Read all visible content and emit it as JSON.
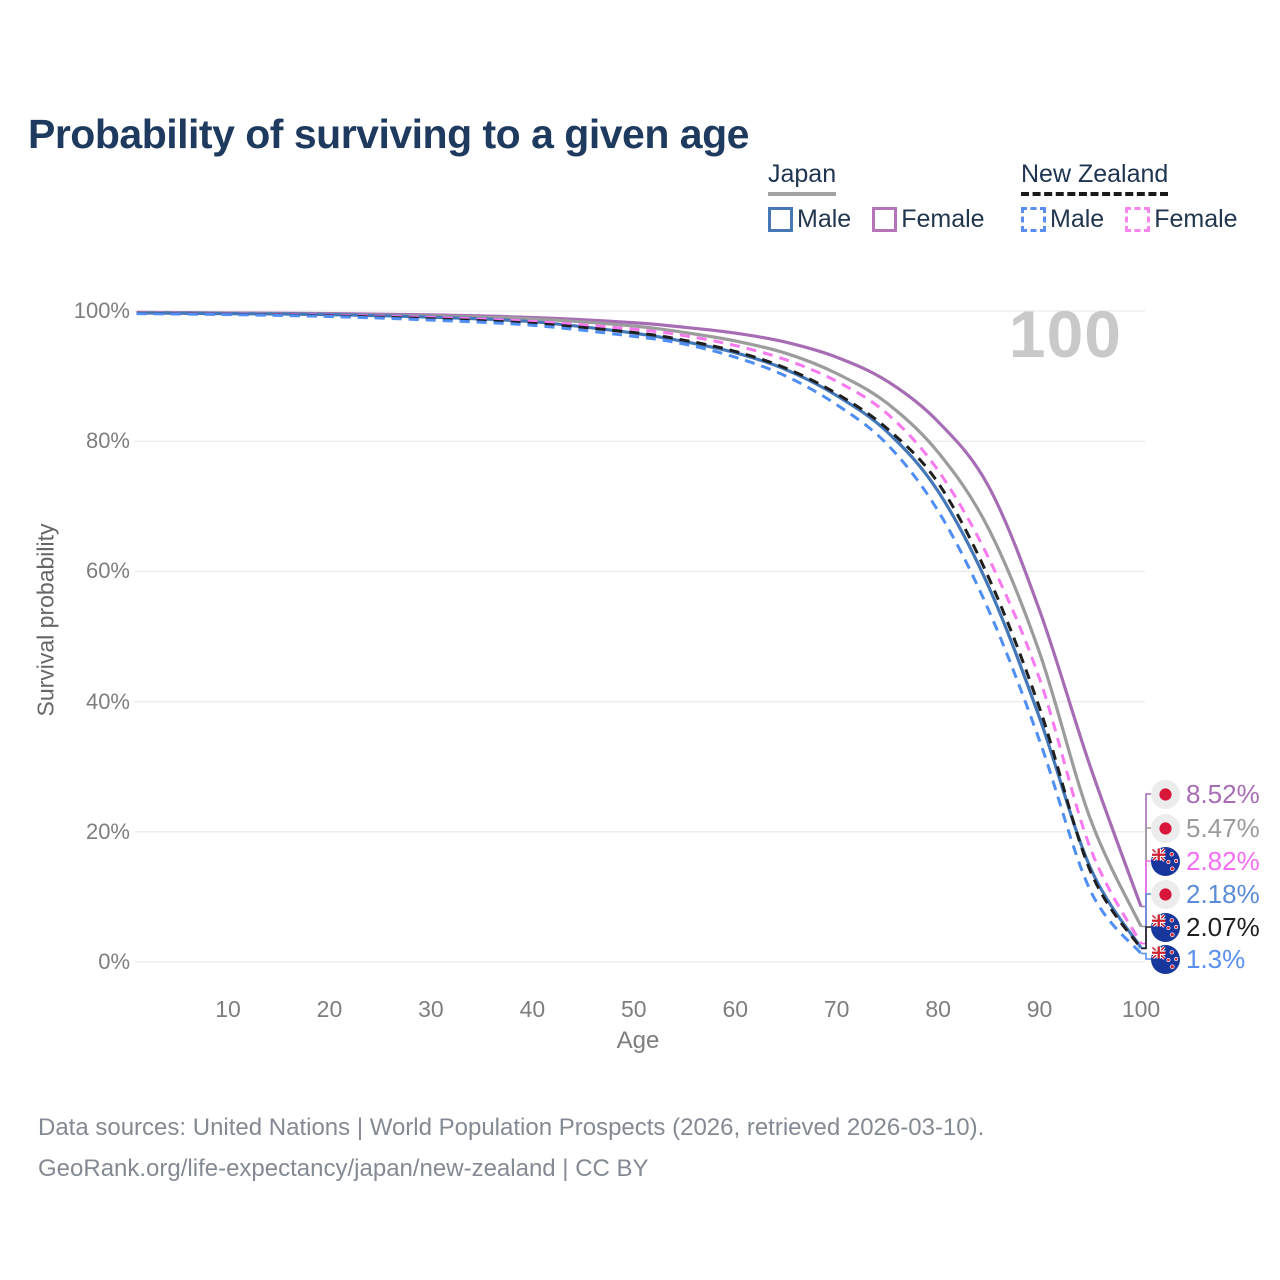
{
  "header": {
    "title": "Probability of surviving to a given age"
  },
  "legend": {
    "groups": [
      {
        "name": "Japan",
        "underline": "solid",
        "underline_color": "#a3a3a3",
        "items": [
          {
            "label": "Male",
            "color": "#4779b8",
            "dash": false
          },
          {
            "label": "Female",
            "color": "#b573b8",
            "dash": false
          }
        ]
      },
      {
        "name": "New Zealand",
        "underline": "dashed",
        "underline_color": "#1a1a1a",
        "items": [
          {
            "label": "Male",
            "color": "#5a8ff2",
            "dash": true
          },
          {
            "label": "Female",
            "color": "#f986ef",
            "dash": true
          }
        ]
      }
    ]
  },
  "chart_data": {
    "type": "line",
    "title": "Probability of surviving to a given age",
    "xlabel": "Age",
    "ylabel": "Survival probability",
    "xlim": [
      1,
      100
    ],
    "ylim": [
      0,
      100
    ],
    "grid": "horizontal",
    "watermark": "100",
    "x_ticks": [
      10,
      20,
      30,
      40,
      50,
      60,
      70,
      80,
      90,
      100
    ],
    "y_ticks": [
      {
        "value": 0,
        "label": "0%"
      },
      {
        "value": 20,
        "label": "20%"
      },
      {
        "value": 40,
        "label": "40%"
      },
      {
        "value": 60,
        "label": "60%"
      },
      {
        "value": 80,
        "label": "80%"
      },
      {
        "value": 100,
        "label": "100%"
      }
    ],
    "x": [
      1,
      10,
      20,
      30,
      40,
      50,
      55,
      60,
      65,
      70,
      75,
      80,
      85,
      90,
      95,
      100
    ],
    "series": [
      {
        "name": "Japan Female",
        "country": "JP",
        "dash": false,
        "color": "#a76db4",
        "label_color": "#a76db4",
        "end_label": "8.52%",
        "values": [
          99.8,
          99.7,
          99.6,
          99.4,
          99.0,
          98.2,
          97.5,
          96.6,
          95.2,
          92.9,
          89.2,
          83.0,
          73.0,
          54.0,
          30.0,
          8.52
        ]
      },
      {
        "name": "Japan Total",
        "country": "JP",
        "dash": false,
        "color": "#9c9c9c",
        "label_color": "#9c9c9c",
        "end_label": "5.47%",
        "values": [
          99.75,
          99.65,
          99.5,
          99.25,
          98.8,
          97.7,
          96.7,
          95.4,
          93.5,
          90.4,
          85.8,
          78.3,
          66.5,
          47.5,
          22.0,
          5.47
        ]
      },
      {
        "name": "New Zealand Female",
        "country": "NZ",
        "dash": true,
        "color": "#f878f0",
        "label_color": "#f36ef3",
        "end_label": "2.82%",
        "values": [
          99.7,
          99.55,
          99.35,
          99.0,
          98.4,
          97.2,
          96.2,
          94.7,
          92.5,
          89.2,
          84.2,
          75.5,
          62.0,
          43.5,
          17.5,
          2.82
        ]
      },
      {
        "name": "Japan Male",
        "country": "JP",
        "dash": false,
        "color": "#4478b9",
        "label_color": "#5b8cd8",
        "end_label": "2.18%",
        "values": [
          99.7,
          99.6,
          99.45,
          99.05,
          98.35,
          96.6,
          95.3,
          93.6,
          91.0,
          87.0,
          81.4,
          72.3,
          57.6,
          37.5,
          14.5,
          2.18
        ]
      },
      {
        "name": "New Zealand Total",
        "country": "NZ",
        "dash": true,
        "color": "#1f1f1f",
        "label_color": "#1f1f1f",
        "end_label": "2.07%",
        "values": [
          99.65,
          99.5,
          99.25,
          98.8,
          98.1,
          96.7,
          95.5,
          93.8,
          91.2,
          87.3,
          81.9,
          73.6,
          59.0,
          39.0,
          14.0,
          2.07
        ]
      },
      {
        "name": "New Zealand Male",
        "country": "NZ",
        "dash": true,
        "color": "#4f8ef4",
        "label_color": "#5a8ff2",
        "end_label": "1.3%",
        "values": [
          99.6,
          99.45,
          99.15,
          98.6,
          97.8,
          96.1,
          94.9,
          92.9,
          90.0,
          85.6,
          79.5,
          69.3,
          54.0,
          34.0,
          11.0,
          1.3
        ]
      }
    ],
    "colors": {
      "grid": "#ededed",
      "tick_text": "#7e7e7e",
      "watermark": "#c9c9c9",
      "title": "#1f3a5f",
      "japan_flag_bg": "#ececec",
      "japan_flag_dot": "#d8153a",
      "nz_flag_bg": "#17379c",
      "nz_flag_star": "#cc2233"
    }
  },
  "footer": {
    "line1": "Data sources: United Nations | World Population Prospects (2026, retrieved 2026-03-10).",
    "line2": "GeoRank.org/life-expectancy/japan/new-zealand | CC BY"
  }
}
